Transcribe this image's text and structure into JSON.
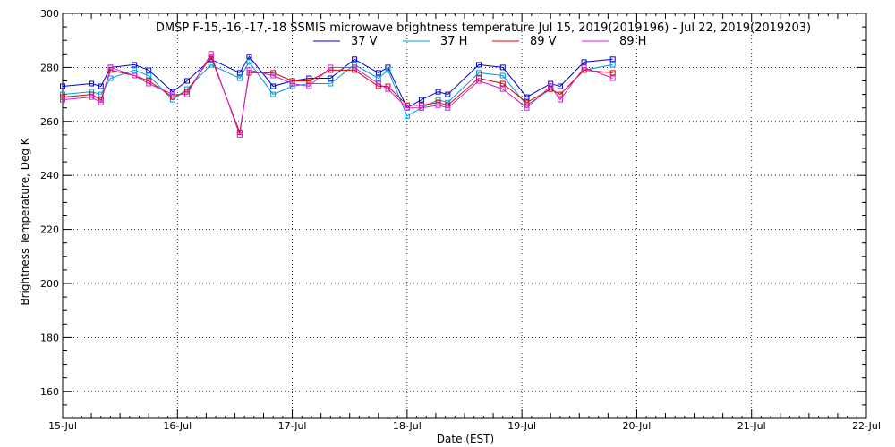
{
  "chart_data": {
    "type": "line",
    "title": "DMSP F-15,-16,-17,-18 SSMIS microwave brightness temperature Jul 15, 2019(2019196) - Jul 22, 2019(2019203)",
    "xlabel": "Date (EST)",
    "ylabel": "Brightness Temperature, Deg K",
    "xlim": [
      "2019-07-15",
      "2019-07-22"
    ],
    "ylim": [
      150,
      300
    ],
    "grid": true,
    "legend_position": "top",
    "x_tick_labels": [
      "15-Jul",
      "16-Jul",
      "17-Jul",
      "18-Jul",
      "19-Jul",
      "20-Jul",
      "21-Jul",
      "22-Jul"
    ],
    "y_ticks": [
      160,
      180,
      200,
      220,
      240,
      260,
      280,
      300
    ],
    "x": [
      "2019-07-15 00:00",
      "2019-07-15 06:00",
      "2019-07-15 08:00",
      "2019-07-15 10:00",
      "2019-07-15 15:00",
      "2019-07-15 18:00",
      "2019-07-15 23:00",
      "2019-07-16 02:00",
      "2019-07-16 07:00",
      "2019-07-16 13:00",
      "2019-07-16 15:00",
      "2019-07-16 20:00",
      "2019-07-17 00:00",
      "2019-07-17 03:30",
      "2019-07-17 08:00",
      "2019-07-17 13:00",
      "2019-07-17 18:00",
      "2019-07-17 20:00",
      "2019-07-18 00:00",
      "2019-07-18 03:00",
      "2019-07-18 06:30",
      "2019-07-18 08:30",
      "2019-07-18 15:00",
      "2019-07-18 20:00",
      "2019-07-19 01:00",
      "2019-07-19 06:00",
      "2019-07-19 08:00",
      "2019-07-19 13:00",
      "2019-07-19 19:00"
    ],
    "series": [
      {
        "name": "37 V",
        "color": "#0000cc",
        "values": [
          273,
          274,
          273,
          280,
          281,
          279,
          271,
          275,
          283,
          278,
          284,
          273,
          275,
          276,
          276,
          283,
          278,
          280,
          265,
          268,
          271,
          270,
          281,
          280,
          269,
          274,
          273,
          282,
          283
        ]
      },
      {
        "name": "37 H",
        "color": "#0099dd",
        "values": [
          270,
          271,
          270,
          276,
          279,
          277,
          268,
          272,
          281,
          276,
          282,
          270,
          273,
          274,
          274,
          281,
          276,
          279,
          262,
          265,
          268,
          267,
          278,
          277,
          266,
          272,
          270,
          279,
          281
        ]
      },
      {
        "name": "89 V",
        "color": "#dd0000",
        "values": [
          269,
          270,
          268,
          279,
          277,
          275,
          269,
          271,
          284,
          256,
          278,
          278,
          275,
          275,
          279,
          279,
          273,
          273,
          266,
          266,
          267,
          266,
          276,
          274,
          267,
          272,
          270,
          279,
          278
        ]
      },
      {
        "name": "89 H",
        "color": "#cc22cc",
        "values": [
          268,
          269,
          267,
          280,
          277,
          274,
          270,
          270,
          285,
          255,
          279,
          277,
          274,
          273,
          280,
          280,
          274,
          272,
          265,
          265,
          266,
          265,
          275,
          272,
          265,
          273,
          268,
          280,
          276
        ]
      }
    ]
  }
}
